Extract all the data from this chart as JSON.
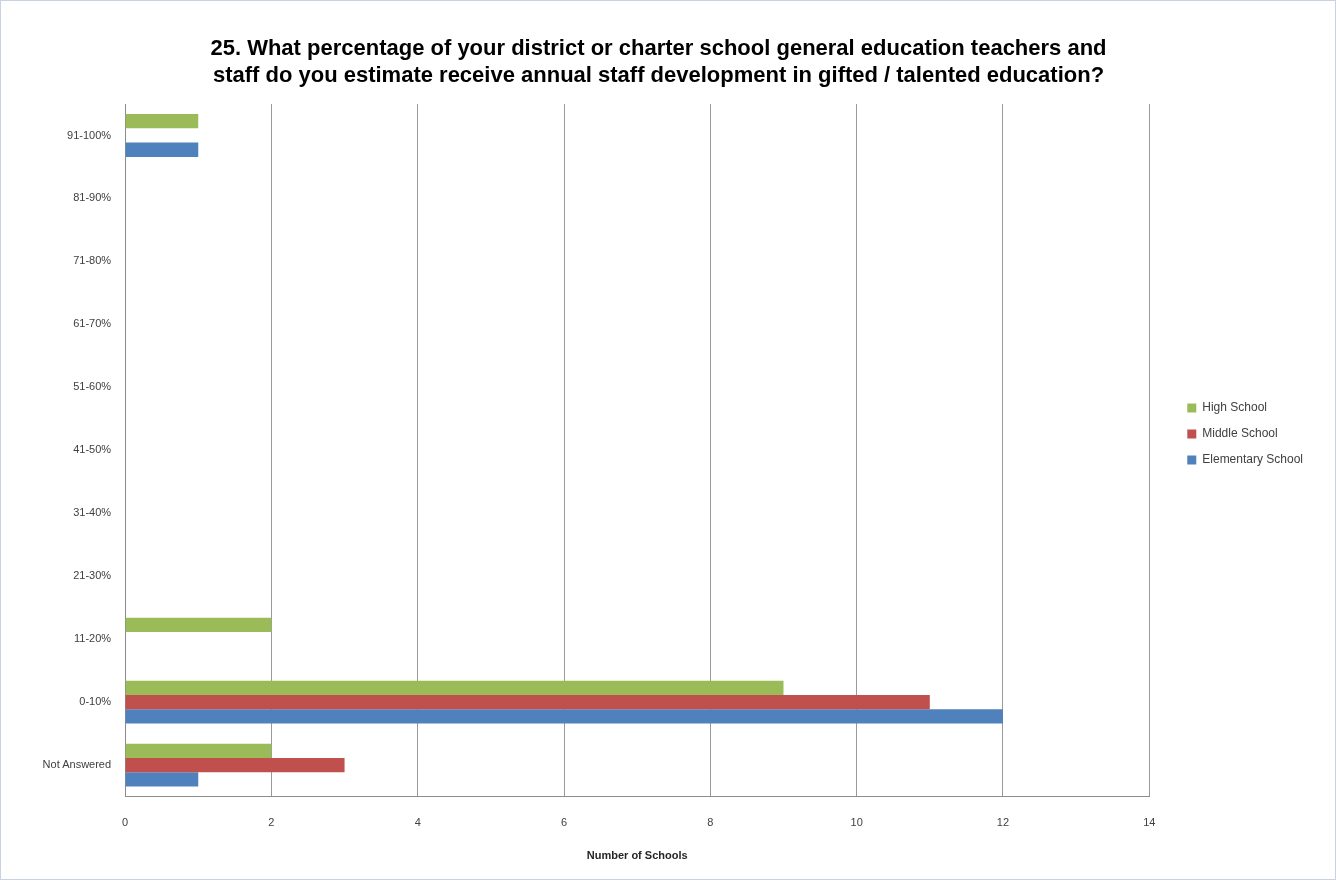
{
  "chart_data": {
    "type": "bar",
    "orientation": "horizontal",
    "title": "25. What percentage of your district or charter school general education teachers and staff do you estimate receive annual staff development in gifted / talented education?",
    "xlabel": "Number of Schools",
    "categories": [
      "91-100%",
      "81-90%",
      "71-80%",
      "61-70%",
      "51-60%",
      "41-50%",
      "31-40%",
      "21-30%",
      "11-20%",
      "0-10%",
      "Not Answered"
    ],
    "series": [
      {
        "name": "High School",
        "color": "#9bbb59",
        "values": [
          1,
          0,
          0,
          0,
          0,
          0,
          0,
          0,
          2,
          9,
          2
        ]
      },
      {
        "name": "Middle School",
        "color": "#c0504d",
        "values": [
          0,
          0,
          0,
          0,
          0,
          0,
          0,
          0,
          0,
          11,
          3
        ]
      },
      {
        "name": "Elementary School",
        "color": "#4f81bd",
        "values": [
          1,
          0,
          0,
          0,
          0,
          0,
          0,
          0,
          0,
          12,
          1
        ]
      }
    ],
    "xlim": [
      0,
      14
    ],
    "xticks": [
      0,
      2,
      4,
      6,
      8,
      10,
      12,
      14
    ],
    "grid": "x",
    "legend": "right"
  }
}
